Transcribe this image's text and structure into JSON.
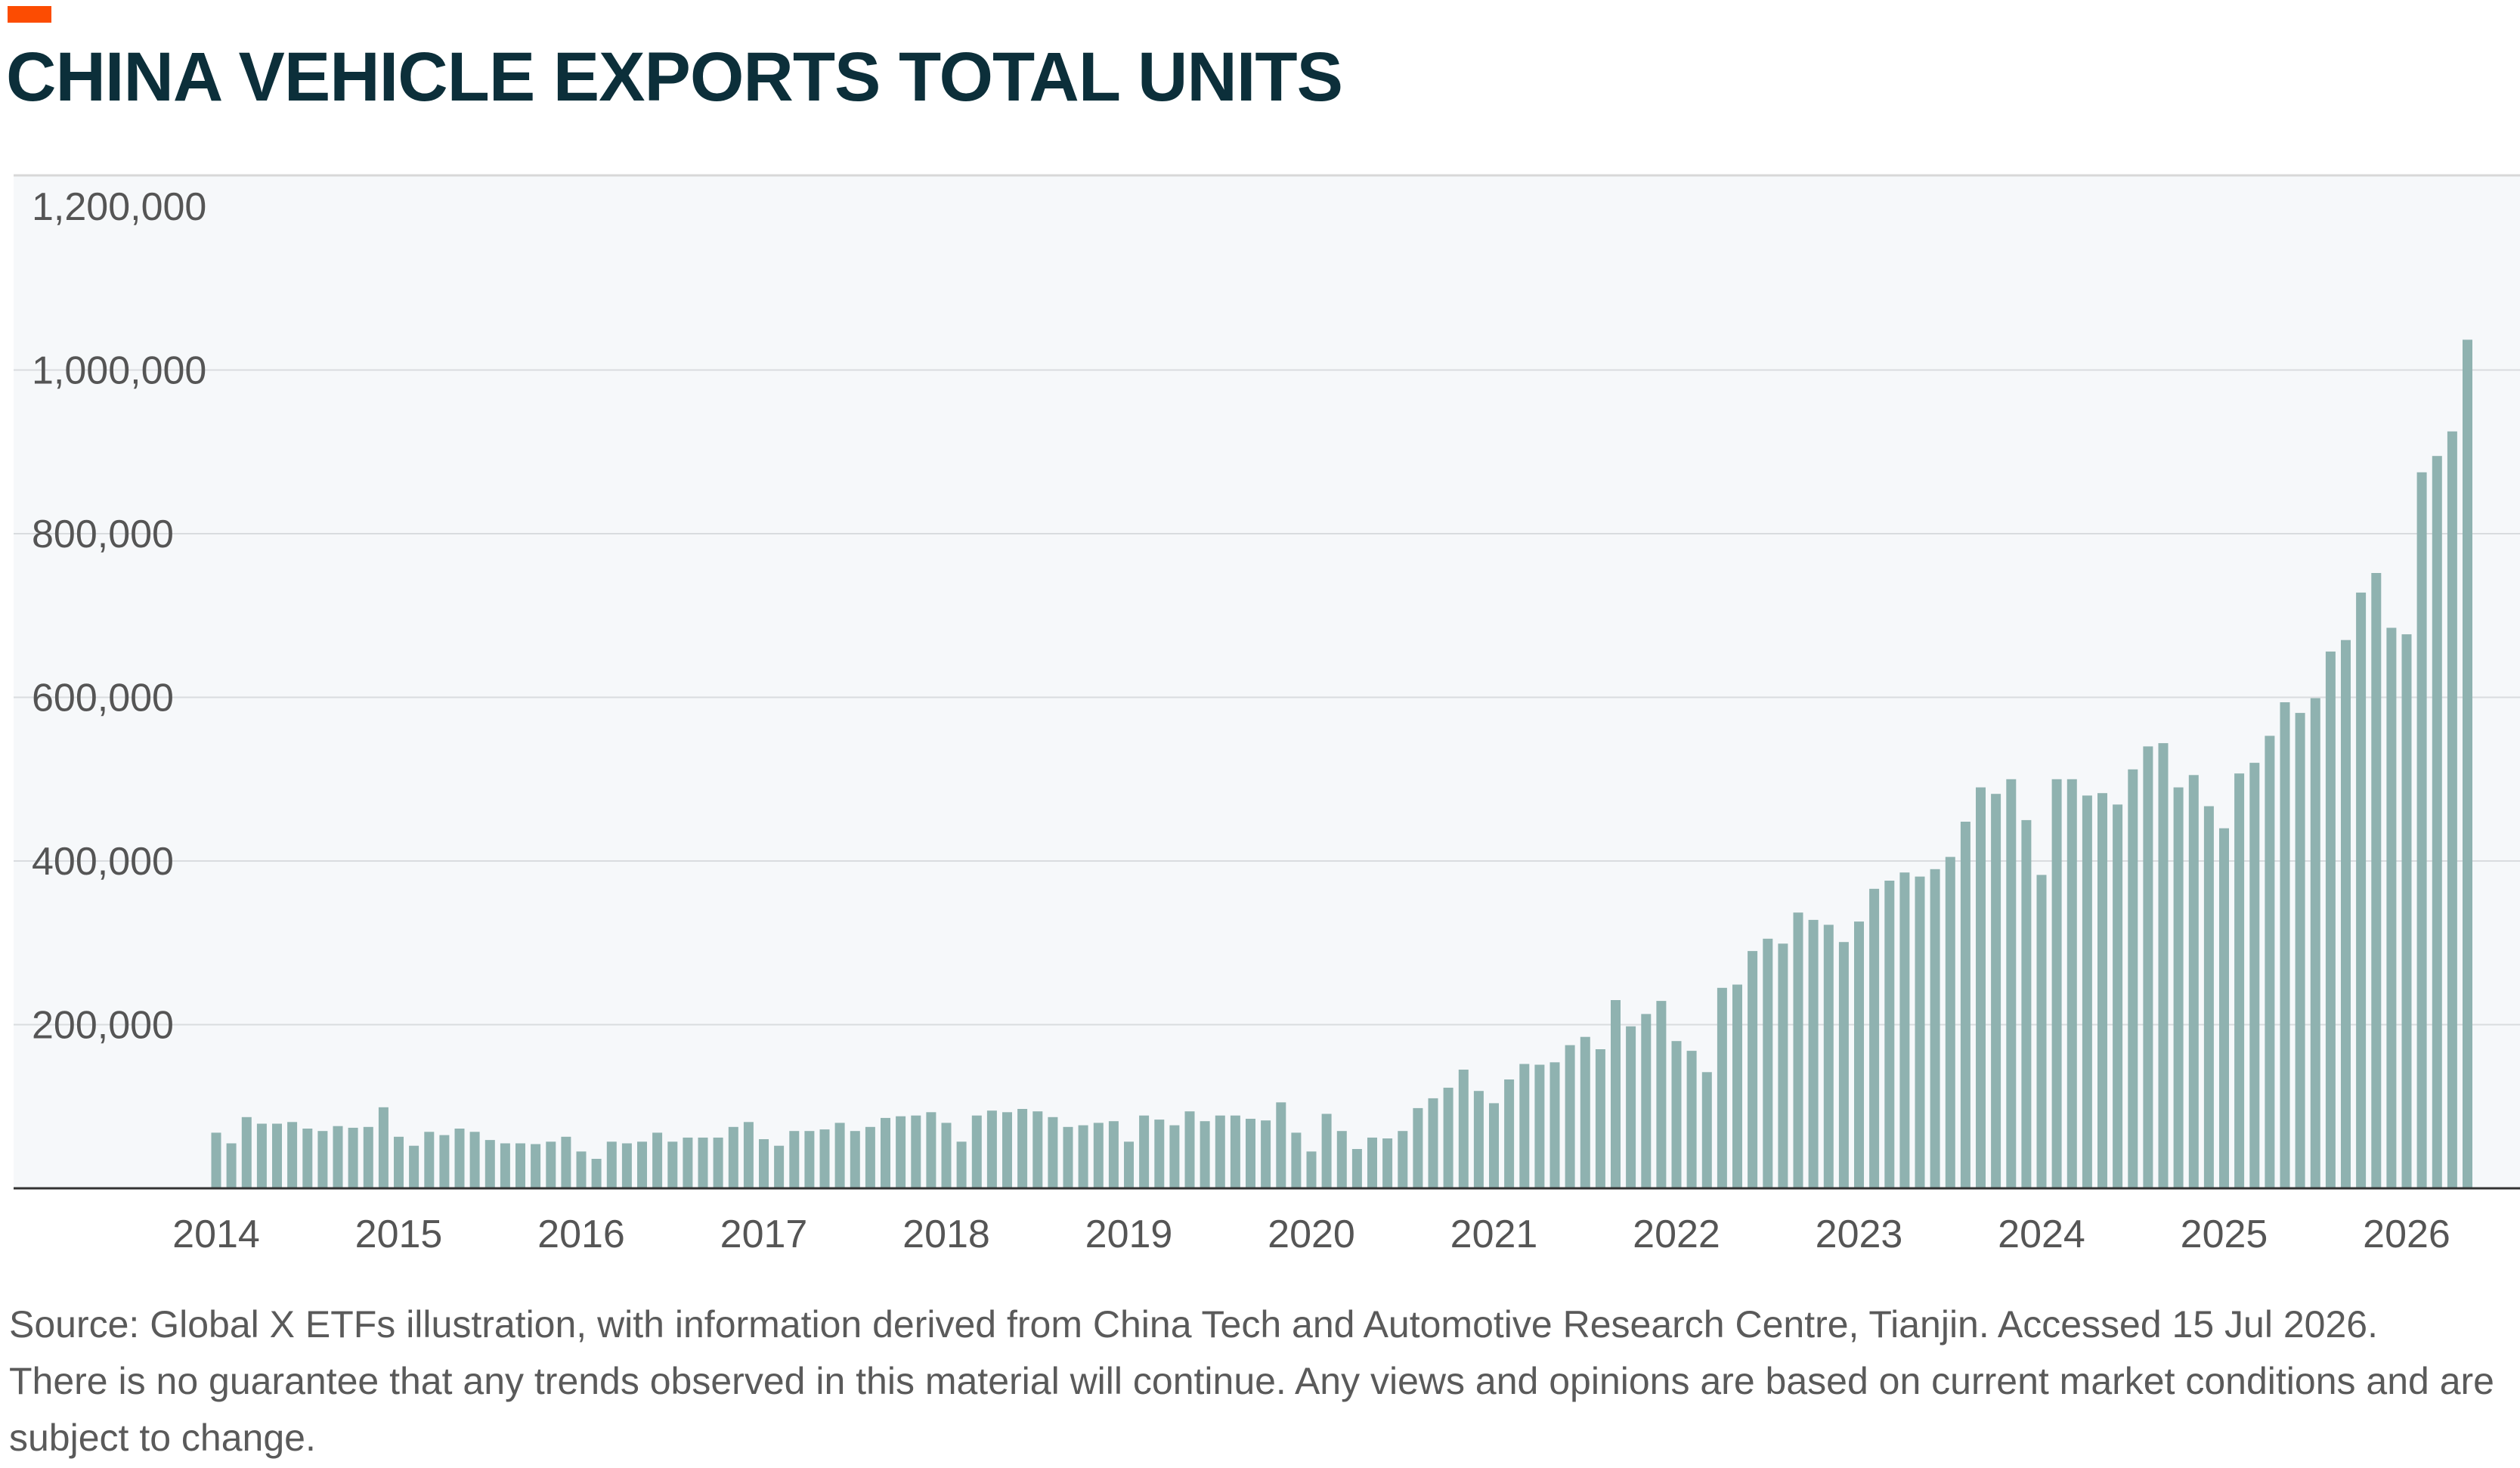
{
  "title": "CHINA VEHICLE EXPORTS TOTAL UNITS",
  "source": "Source: Global X ETFs illustration, with information derived from China Tech and Automotive Research Centre, Tianjin. Accessed 15 Jul 2026.",
  "disclaimer": "There is no guarantee that any trends observed in this material will continue. Any views and opinions are based on current market conditions and are subject to change.",
  "colors": {
    "accent": "#fc4c02",
    "title": "#0c2f3a",
    "bar": "#8fb2b0",
    "plot_bg": "#f6f8fa"
  },
  "chart_data": {
    "type": "bar",
    "title": "CHINA VEHICLE EXPORTS TOTAL UNITS",
    "xlabel": "",
    "ylabel": "",
    "ylim": [
      0,
      1200000
    ],
    "yticks": [
      "200,000",
      "400,000",
      "600,000",
      "800,000",
      "1,000,000",
      "1,200,000"
    ],
    "xticks": [
      "2014",
      "2015",
      "2016",
      "2017",
      "2018",
      "2019",
      "2020",
      "2021",
      "2022",
      "2023",
      "2024",
      "2025",
      "2026"
    ],
    "grid": true,
    "frequency": "monthly",
    "start": "Jan 2014",
    "values": [
      68000,
      55000,
      87000,
      79000,
      79000,
      81000,
      73000,
      70000,
      76000,
      74000,
      75000,
      99000,
      63000,
      52000,
      69000,
      65000,
      73000,
      69000,
      59000,
      55000,
      55000,
      54000,
      57000,
      63000,
      45000,
      36000,
      57000,
      55000,
      57000,
      68000,
      57000,
      62000,
      62000,
      62000,
      75000,
      81000,
      60000,
      52000,
      70000,
      70000,
      72000,
      80000,
      70000,
      75000,
      86000,
      88000,
      89000,
      93000,
      80000,
      57000,
      89000,
      95000,
      93000,
      97000,
      94000,
      87000,
      75000,
      77000,
      80000,
      82000,
      57000,
      89000,
      84000,
      77000,
      94000,
      82000,
      89000,
      89000,
      85000,
      83000,
      105000,
      68000,
      45000,
      91000,
      70000,
      48000,
      62000,
      61000,
      70000,
      98000,
      110000,
      123000,
      145000,
      119000,
      104000,
      133000,
      152000,
      151000,
      154000,
      175000,
      185000,
      170000,
      230000,
      198000,
      213000,
      229000,
      180000,
      168000,
      142000,
      245000,
      249000,
      290000,
      305000,
      299000,
      337000,
      328000,
      322000,
      301000,
      326000,
      366000,
      376000,
      386000,
      381000,
      390000,
      405000,
      448000,
      490000,
      482000,
      500000,
      450000,
      383000,
      500000,
      500000,
      480000,
      483000,
      469000,
      512000,
      540000,
      544000,
      490000,
      505000,
      467000,
      440000,
      507000,
      520000,
      553000,
      594000,
      581000,
      599000,
      656000,
      670000,
      728000,
      752000,
      685000,
      677000,
      875000,
      895000,
      925000,
      1037000
    ]
  }
}
